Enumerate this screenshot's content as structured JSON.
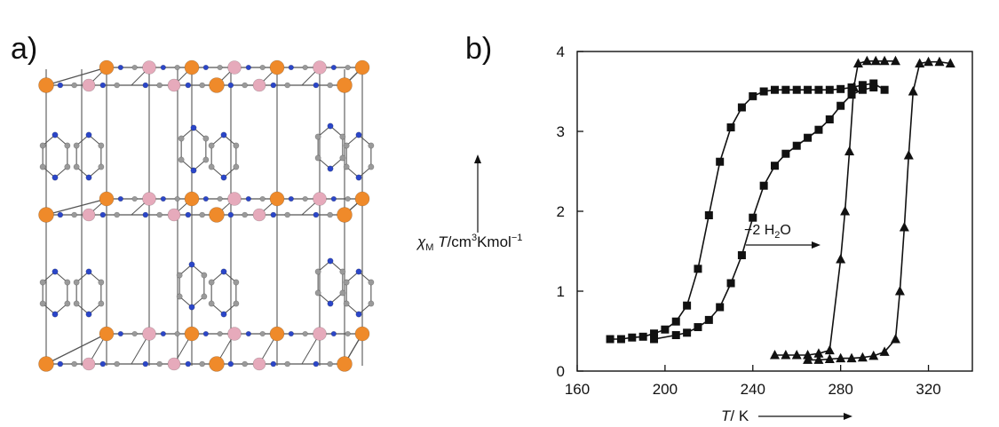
{
  "panels": {
    "a": {
      "label": "a)"
    },
    "b": {
      "label": "b)"
    }
  },
  "colors": {
    "iron_atom": "#ef8a2a",
    "metal_atom_pink": "#e6aabb",
    "nitrogen_atom": "#2b46c8",
    "carbon_atom": "#9a9a9a",
    "bond": "#555555"
  },
  "chart_data": {
    "type": "scatter",
    "xlim": [
      160,
      340
    ],
    "ylim": [
      0,
      4
    ],
    "xticks": [
      160,
      200,
      240,
      280,
      320
    ],
    "yticks": [
      0,
      1,
      2,
      3,
      4
    ],
    "xlabel": "T/ K",
    "ylabel": "χM T/cm3Kmol−1",
    "annotation": "−2 H2O",
    "series": [
      {
        "marker": "square",
        "points": [
          [
            175,
            0.4
          ],
          [
            180,
            0.4
          ],
          [
            185,
            0.42
          ],
          [
            190,
            0.43
          ],
          [
            195,
            0.47
          ],
          [
            200,
            0.52
          ],
          [
            205,
            0.62
          ],
          [
            210,
            0.82
          ],
          [
            215,
            1.28
          ],
          [
            220,
            1.95
          ],
          [
            225,
            2.62
          ],
          [
            230,
            3.05
          ],
          [
            235,
            3.3
          ],
          [
            240,
            3.44
          ],
          [
            245,
            3.5
          ],
          [
            250,
            3.52
          ],
          [
            255,
            3.52
          ],
          [
            260,
            3.52
          ],
          [
            265,
            3.52
          ],
          [
            270,
            3.52
          ],
          [
            275,
            3.52
          ],
          [
            280,
            3.53
          ],
          [
            285,
            3.55
          ],
          [
            290,
            3.58
          ],
          [
            295,
            3.6
          ],
          [
            300,
            3.52
          ],
          [
            195,
            0.4
          ],
          [
            205,
            0.45
          ],
          [
            210,
            0.48
          ],
          [
            215,
            0.55
          ],
          [
            220,
            0.64
          ],
          [
            225,
            0.8
          ],
          [
            230,
            1.1
          ],
          [
            235,
            1.45
          ],
          [
            240,
            1.92
          ],
          [
            245,
            2.32
          ],
          [
            250,
            2.57
          ],
          [
            255,
            2.72
          ],
          [
            260,
            2.82
          ],
          [
            265,
            2.92
          ],
          [
            270,
            3.02
          ],
          [
            275,
            3.15
          ],
          [
            280,
            3.32
          ],
          [
            285,
            3.46
          ],
          [
            290,
            3.52
          ],
          [
            295,
            3.55
          ]
        ]
      },
      {
        "marker": "triangle",
        "points": [
          [
            250,
            0.2
          ],
          [
            255,
            0.2
          ],
          [
            260,
            0.2
          ],
          [
            265,
            0.2
          ],
          [
            270,
            0.22
          ],
          [
            275,
            0.26
          ],
          [
            280,
            1.4
          ],
          [
            282,
            2.0
          ],
          [
            284,
            2.75
          ],
          [
            286,
            3.55
          ],
          [
            288,
            3.85
          ],
          [
            292,
            3.88
          ],
          [
            296,
            3.88
          ],
          [
            300,
            3.88
          ],
          [
            305,
            3.88
          ],
          [
            265,
            0.14
          ],
          [
            270,
            0.14
          ],
          [
            275,
            0.15
          ],
          [
            280,
            0.16
          ],
          [
            285,
            0.16
          ],
          [
            290,
            0.17
          ],
          [
            295,
            0.19
          ],
          [
            300,
            0.24
          ],
          [
            305,
            0.4
          ],
          [
            307,
            1.0
          ],
          [
            309,
            1.8
          ],
          [
            311,
            2.7
          ],
          [
            313,
            3.5
          ],
          [
            316,
            3.85
          ],
          [
            320,
            3.87
          ],
          [
            325,
            3.87
          ],
          [
            330,
            3.85
          ]
        ]
      }
    ]
  }
}
